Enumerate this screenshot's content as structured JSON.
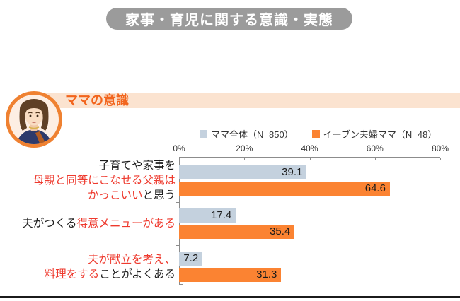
{
  "header_badge": {
    "text": "家事・育児に関する意識・実態",
    "bg_color": "#9b9b9b",
    "text_color": "#ffffff"
  },
  "section": {
    "title": "ママの意識",
    "title_color": "#f2641c",
    "bar_color": "#fbe3d0",
    "avatar": "mama-illustration"
  },
  "chart_data": {
    "type": "bar",
    "orientation": "horizontal",
    "unit": "%",
    "grid": false,
    "legend_position": "top",
    "axis": {
      "ticks": [
        "0%",
        "20%",
        "40%",
        "60%",
        "80%"
      ],
      "tick_values": [
        0,
        20,
        40,
        60,
        80
      ],
      "max": 80
    },
    "em_color": "#ee392d",
    "value_label_color": "#1a1a1a",
    "categories": [
      {
        "text": "子育てや家事を母親と同等にこなせる父親はかっこいいと思う",
        "lines": [
          [
            {
              "text": "子育てや家事を",
              "em": false
            }
          ],
          [
            {
              "text": "母親と同等にこなせる父親は",
              "em": true
            }
          ],
          [
            {
              "text": "かっこいい",
              "em": true
            },
            {
              "text": "と思う",
              "em": false
            }
          ]
        ]
      },
      {
        "text": "夫がつくる得意メニューがある",
        "lines": [
          [
            {
              "text": "夫がつくる",
              "em": false
            },
            {
              "text": "得意メニューがある",
              "em": true
            }
          ]
        ]
      },
      {
        "text": "夫が献立を考え、料理をすることがよくある",
        "lines": [
          [
            {
              "text": "夫が献立を考え、",
              "em": true
            }
          ],
          [
            {
              "text": "料理をする",
              "em": true
            },
            {
              "text": "ことがよくある",
              "em": false
            }
          ]
        ]
      }
    ],
    "series": [
      {
        "name": "ママ全体（N=850）",
        "color": "#c4d1de",
        "values": [
          39.1,
          17.4,
          7.2
        ]
      },
      {
        "name": "イーブン夫婦ママ（N=48）",
        "color": "#fb8332",
        "values": [
          64.6,
          35.4,
          31.3
        ]
      }
    ]
  },
  "footer": {
    "line_color": "#1b1b1b"
  }
}
